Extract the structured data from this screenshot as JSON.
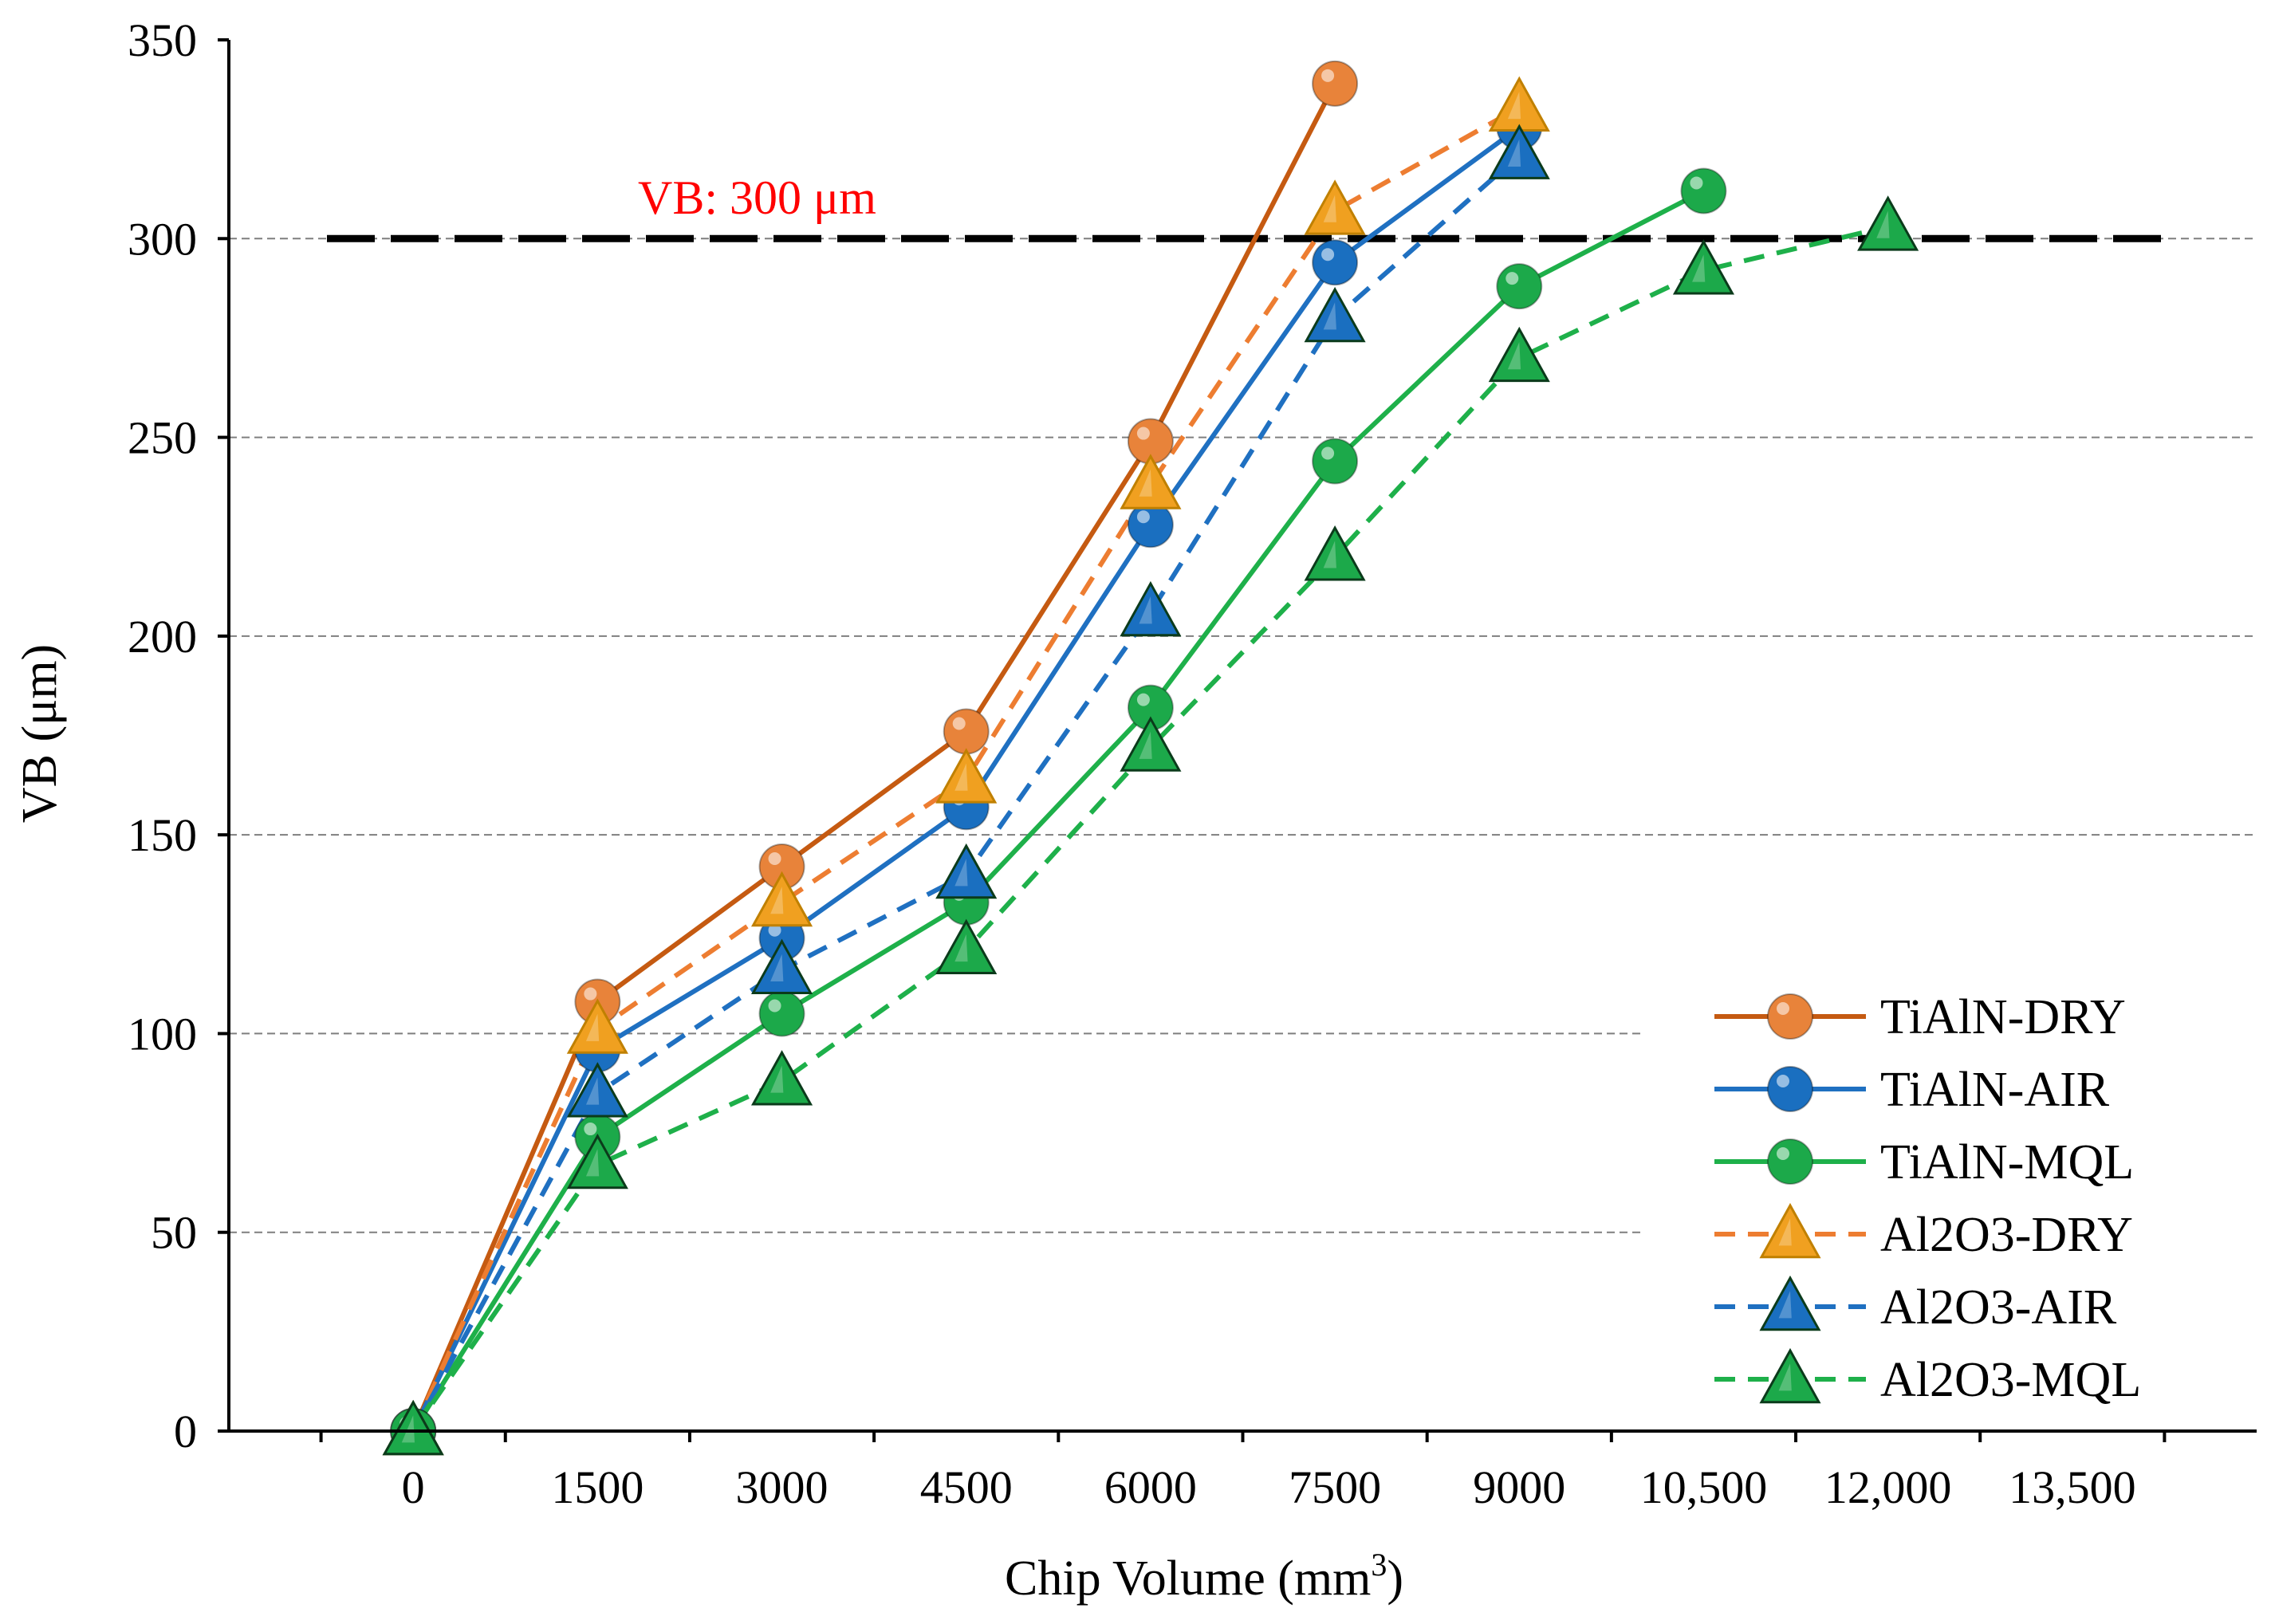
{
  "chart_data": {
    "type": "line",
    "title": "",
    "xlabel": "Chip Volume (mm",
    "xlabel_sup": "3",
    "xlabel_end": ")",
    "ylabel": "VB (μm)",
    "xlim": [
      -1500,
      15000
    ],
    "ylim": [
      0,
      350
    ],
    "grid": true,
    "x_ticks": [
      0,
      1500,
      3000,
      4500,
      6000,
      7500,
      9000,
      10500,
      12000,
      13500
    ],
    "x_tick_labels": [
      "0",
      "1500",
      "3000",
      "4500",
      "6000",
      "7500",
      "9000",
      "10,500",
      "12,000",
      "13,500"
    ],
    "y_ticks": [
      0,
      50,
      100,
      150,
      200,
      250,
      300,
      350
    ],
    "y_tick_labels": [
      "0",
      "50",
      "100",
      "150",
      "200",
      "250",
      "300",
      "350"
    ],
    "reference_line": {
      "y": 300,
      "label": "VB: 300 μm",
      "label_color": "#ff0000"
    },
    "legend_position": "bottom-right",
    "series": [
      {
        "name": "TiAlN-DRY",
        "color": "#c55a11",
        "dash": "solid",
        "marker": "circle",
        "x": [
          0,
          1500,
          3000,
          4500,
          6000,
          7500
        ],
        "values": [
          0,
          108,
          142,
          176,
          249,
          339
        ]
      },
      {
        "name": "TiAlN-AIR",
        "color": "#1f70c1",
        "dash": "solid",
        "marker": "circle",
        "x": [
          0,
          1500,
          3000,
          4500,
          6000,
          7500,
          9000
        ],
        "values": [
          0,
          96,
          124,
          157,
          228,
          294,
          328
        ]
      },
      {
        "name": "TiAlN-MQL",
        "color": "#1eb04a",
        "dash": "solid",
        "marker": "circle",
        "x": [
          0,
          1500,
          3000,
          4500,
          6000,
          7500,
          9000,
          10500
        ],
        "values": [
          0,
          74,
          105,
          133,
          182,
          244,
          288,
          312
        ]
      },
      {
        "name": "Al2O3-DRY",
        "color": "#ed7d31",
        "dash": "dashed",
        "marker": "triangle",
        "x": [
          0,
          1500,
          3000,
          4500,
          6000,
          7500,
          9000
        ],
        "values": [
          0,
          101,
          133,
          164,
          238,
          307,
          333
        ]
      },
      {
        "name": "Al2O3-AIR",
        "color": "#1f70c1",
        "dash": "dashed",
        "marker": "triangle",
        "x": [
          0,
          1500,
          3000,
          4500,
          6000,
          7500,
          9000
        ],
        "values": [
          0,
          85,
          116,
          140,
          206,
          280,
          321
        ]
      },
      {
        "name": "Al2O3-MQL",
        "color": "#1eb04a",
        "dash": "dashed",
        "marker": "triangle",
        "x": [
          0,
          1500,
          3000,
          4500,
          6000,
          7500,
          9000,
          10500,
          12000
        ],
        "values": [
          0,
          67,
          88,
          121,
          172,
          220,
          270,
          292,
          303
        ]
      }
    ]
  },
  "colors": {
    "tialn_dry_marker_fill": "#e8833a",
    "al2o3_dry_marker_fill": "#f0a020",
    "blue_marker_fill": "#1a6fc0",
    "green_marker_fill": "#1ca94a"
  }
}
